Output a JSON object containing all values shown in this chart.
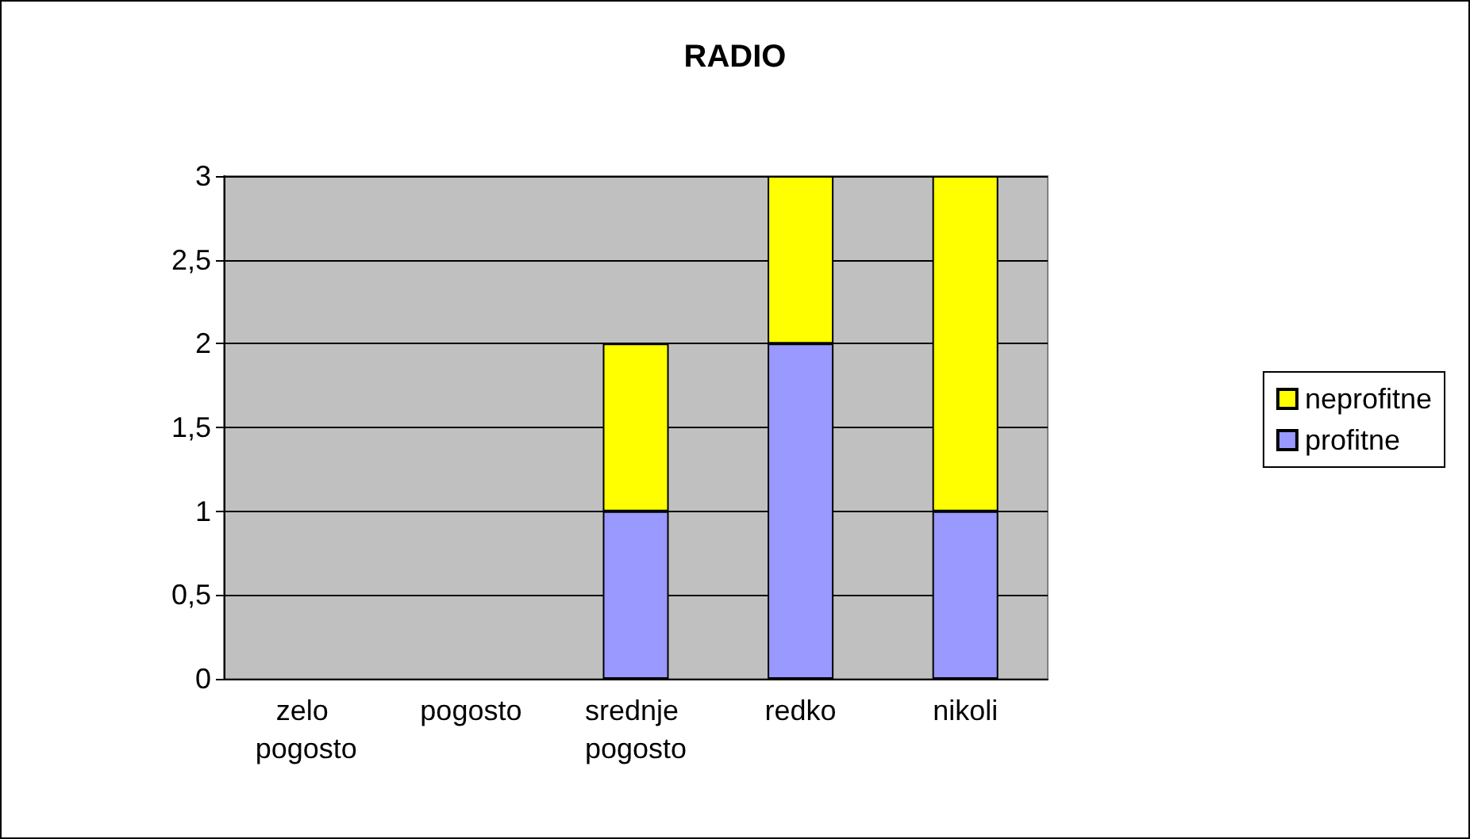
{
  "chart_data": {
    "type": "bar",
    "title": "RADIO",
    "categories": [
      "zelo pogosto",
      "pogosto",
      "srednje pogosto",
      "redko",
      "nikoli"
    ],
    "series": [
      {
        "name": "profitne",
        "color": "#9999ff",
        "values": [
          0,
          0,
          1,
          2,
          1
        ]
      },
      {
        "name": "neprofitne",
        "color": "#ffff00",
        "values": [
          0,
          0,
          1,
          1,
          2
        ]
      }
    ],
    "stacked": true,
    "ylim": [
      0,
      3
    ],
    "yticks": [
      0,
      {
        "value": 0.5,
        "label": "0,5"
      },
      1,
      {
        "value": 1.5,
        "label": "1,5"
      },
      2,
      {
        "value": 2.5,
        "label": "2,5"
      },
      3
    ],
    "grid": "y",
    "legend": "right"
  }
}
